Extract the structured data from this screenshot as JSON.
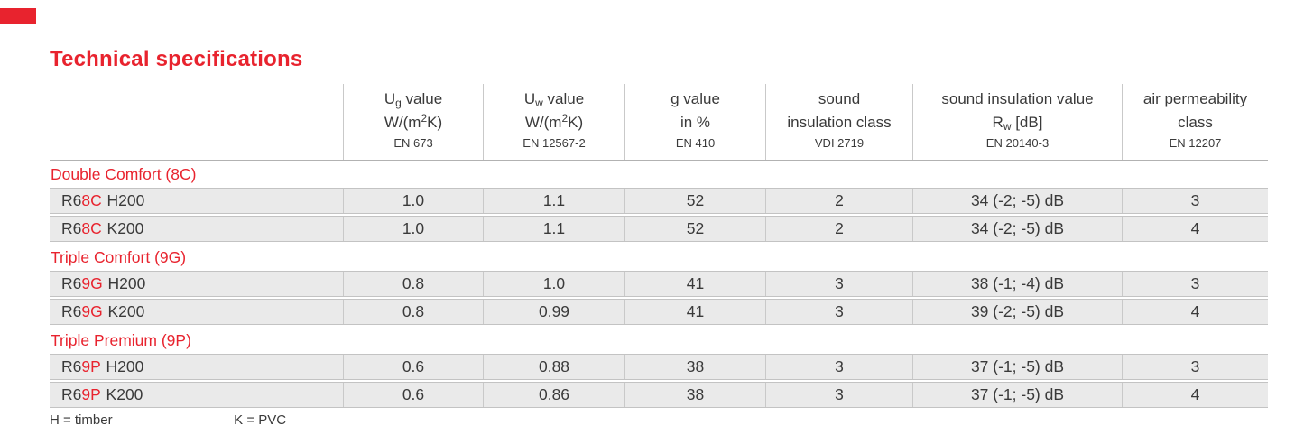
{
  "page": {
    "title": "Technical specifications"
  },
  "colors": {
    "accent_red": "#e8232e",
    "row_fill": "#eaeaea",
    "border_gray": "#c3c3c3",
    "text_dark": "#3a3a3a"
  },
  "table": {
    "columns": [
      {
        "line1": {
          "pre": "U",
          "sub": "g",
          "post": " value"
        },
        "line2": {
          "pre": "W/(m",
          "sup": "2",
          "post": "K)"
        },
        "standard": "EN 673"
      },
      {
        "line1": {
          "pre": "U",
          "sub": "w",
          "post": " value"
        },
        "line2": {
          "pre": "W/(m",
          "sup": "2",
          "post": "K)"
        },
        "standard": "EN 12567-2"
      },
      {
        "line1": {
          "pre": "g value"
        },
        "line2": {
          "pre": "in %"
        },
        "standard": "EN 410"
      },
      {
        "line1": {
          "pre": "sound"
        },
        "line2": {
          "pre": "insulation class"
        },
        "standard": "VDI 2719"
      },
      {
        "line1": {
          "pre": "sound insulation value"
        },
        "line2": {
          "pre": "R",
          "sub": "w",
          "post": " [dB]"
        },
        "standard": "EN 20140-3"
      },
      {
        "line1": {
          "pre": "air permeability"
        },
        "line2": {
          "pre": "class"
        },
        "standard": "EN 12207"
      }
    ],
    "sections": [
      {
        "group": "Double Comfort (8C)",
        "rows": [
          {
            "label_pre": "R6",
            "label_code": "8C",
            "label_rest": "H200",
            "values": [
              "1.0",
              "1.1",
              "52",
              "2",
              "34 (-2; -5) dB",
              "3"
            ]
          },
          {
            "label_pre": "R6",
            "label_code": "8C",
            "label_rest": "K200",
            "values": [
              "1.0",
              "1.1",
              "52",
              "2",
              "34 (-2; -5) dB",
              "4"
            ]
          }
        ]
      },
      {
        "group": "Triple Comfort (9G)",
        "rows": [
          {
            "label_pre": "R6",
            "label_code": "9G",
            "label_rest": "H200",
            "values": [
              "0.8",
              "1.0",
              "41",
              "3",
              "38 (-1; -4) dB",
              "3"
            ]
          },
          {
            "label_pre": "R6",
            "label_code": "9G",
            "label_rest": "K200",
            "values": [
              "0.8",
              "0.99",
              "41",
              "3",
              "39 (-2; -5) dB",
              "4"
            ]
          }
        ]
      },
      {
        "group": "Triple Premium (9P)",
        "rows": [
          {
            "label_pre": "R6",
            "label_code": "9P",
            "label_rest": "H200",
            "values": [
              "0.6",
              "0.88",
              "38",
              "3",
              "37 (-1; -5) dB",
              "3"
            ]
          },
          {
            "label_pre": "R6",
            "label_code": "9P",
            "label_rest": "K200",
            "values": [
              "0.6",
              "0.86",
              "38",
              "3",
              "37 (-1; -5) dB",
              "4"
            ]
          }
        ]
      }
    ]
  },
  "footer": {
    "legend1": "H = timber",
    "legend2": "K = PVC"
  }
}
